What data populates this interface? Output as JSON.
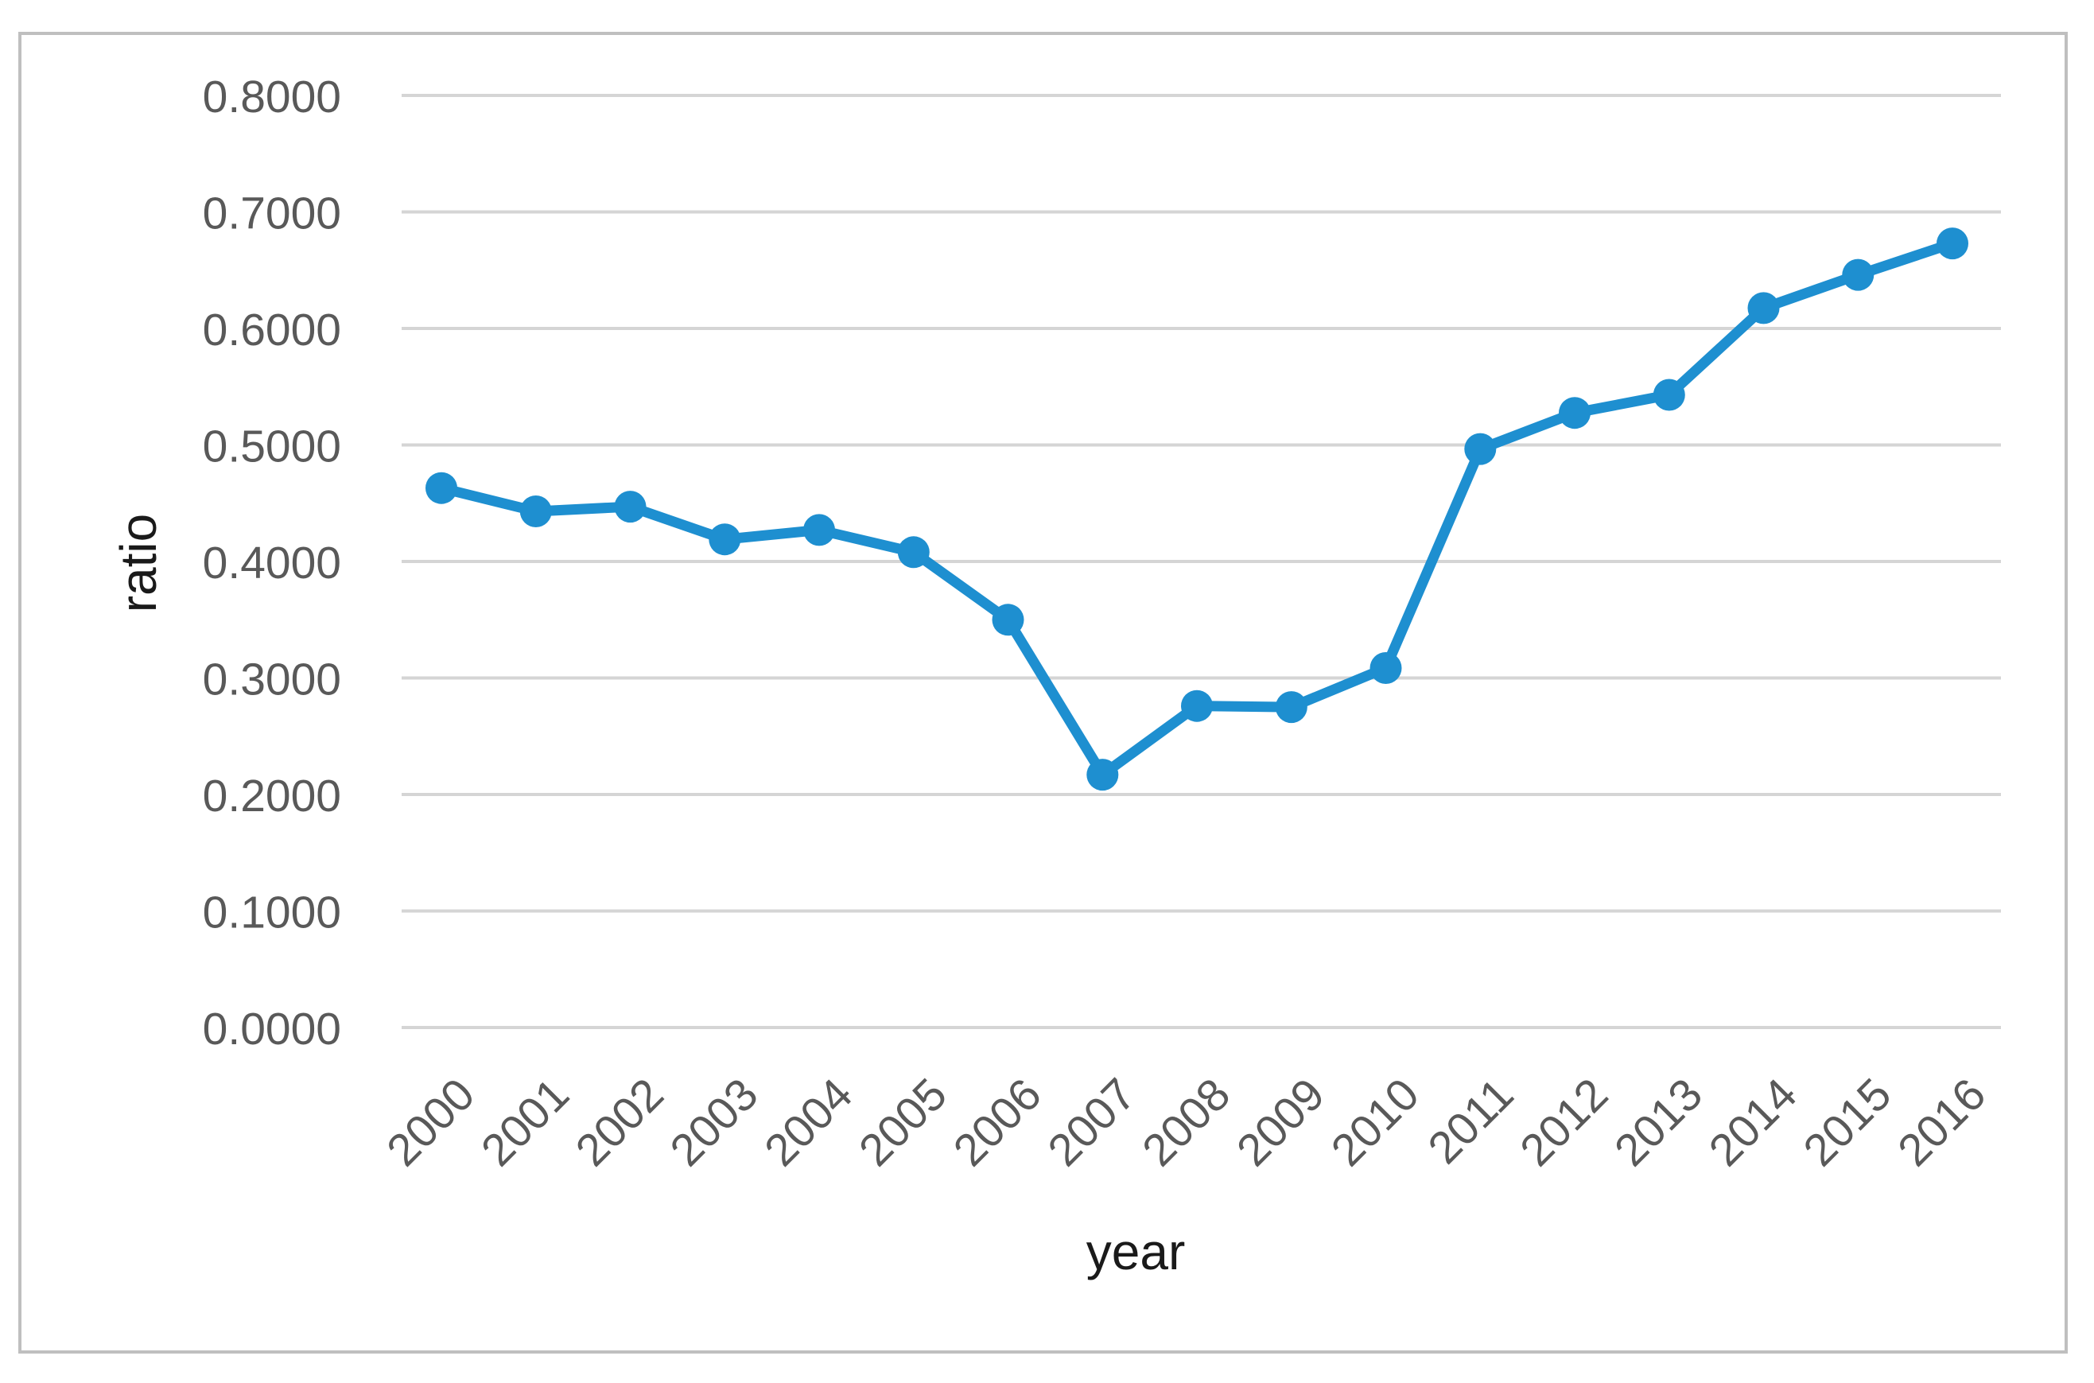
{
  "chart_data": {
    "type": "line",
    "title": "",
    "xlabel": "year",
    "ylabel": "ratio",
    "categories": [
      "2000",
      "2001",
      "2002",
      "2003",
      "2004",
      "2005",
      "2006",
      "2007",
      "2008",
      "2009",
      "2010",
      "2011",
      "2012",
      "2013",
      "2014",
      "2015",
      "2016"
    ],
    "series": [
      {
        "name": "ratio",
        "values": [
          0.463,
          0.443,
          0.447,
          0.419,
          0.427,
          0.408,
          0.35,
          0.217,
          0.276,
          0.275,
          0.3085,
          0.4965,
          0.5275,
          0.543,
          0.6175,
          0.646,
          0.673
        ]
      }
    ],
    "y_ticks": [
      "0.8000",
      "0.7000",
      "0.6000",
      "0.5000",
      "0.4000",
      "0.3000",
      "0.2000",
      "0.1000",
      "0.0000"
    ],
    "ylim": [
      0.0,
      0.8
    ],
    "grid": "horizontal",
    "legend": "none",
    "marker": "circle",
    "x_tick_rotation_deg": 45,
    "colors": {
      "series": "#1E8FD0",
      "tick_label": "#595959",
      "axis_title": "#1A1A1A",
      "gridline": "#D5D5D5",
      "border": "#BFBFBF",
      "background": "#FFFFFF"
    }
  }
}
